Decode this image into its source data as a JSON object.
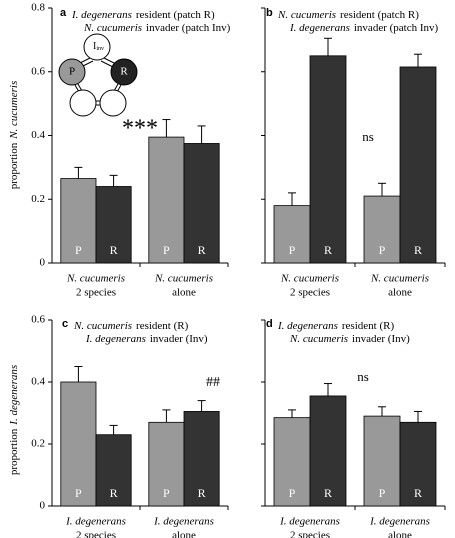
{
  "chart_data": [
    {
      "type": "bar",
      "letter": "a",
      "legend_lines": [
        [
          "I. degenerans",
          "resident (patch R)"
        ],
        [
          "N. cucumeris",
          "invader (patch Inv)"
        ]
      ],
      "y_label": [
        "proportion",
        "N. cucumeris"
      ],
      "categories": [
        [
          "N. cucumeris",
          "2 species"
        ],
        [
          "N. cucumeris",
          "alone"
        ]
      ],
      "series": [
        {
          "name": "P",
          "color": "#999999",
          "values": [
            0.265,
            0.395
          ],
          "errors": [
            0.035,
            0.055
          ]
        },
        {
          "name": "R",
          "color": "#333333",
          "values": [
            0.24,
            0.375
          ],
          "errors": [
            0.035,
            0.055
          ]
        }
      ],
      "ylim": [
        0,
        0.8
      ],
      "yticks": [
        0,
        0.2,
        0.4,
        0.6,
        0.8
      ],
      "ytick_labels": true,
      "annotation": "***",
      "diagram": {
        "labels": [
          "I",
          "inv",
          "P",
          "R"
        ]
      }
    },
    {
      "type": "bar",
      "letter": "b",
      "legend_lines": [
        [
          "N. cucumeris",
          "resident (patch R)"
        ],
        [
          "I. degenerans",
          "invader (patch Inv)"
        ]
      ],
      "categories": [
        [
          "N. cucumeris",
          "2 species"
        ],
        [
          "N. cucumeris",
          "alone"
        ]
      ],
      "series": [
        {
          "name": "P",
          "color": "#999999",
          "values": [
            0.18,
            0.21
          ],
          "errors": [
            0.04,
            0.04
          ]
        },
        {
          "name": "R",
          "color": "#333333",
          "values": [
            0.65,
            0.615
          ],
          "errors": [
            0.055,
            0.04
          ]
        }
      ],
      "ylim": [
        0,
        0.8
      ],
      "yticks": [
        0,
        0.2,
        0.4,
        0.6,
        0.8
      ],
      "ytick_labels": false,
      "annotation": "ns"
    },
    {
      "type": "bar",
      "letter": "c",
      "legend_lines": [
        [
          "N. cucumeris",
          "resident (R)"
        ],
        [
          "I. degenerans",
          "invader (Inv)"
        ]
      ],
      "y_label": [
        "proportion",
        "I. degenerans"
      ],
      "categories": [
        [
          "I. degenerans",
          "2 species"
        ],
        [
          "I. degenerans",
          "alone"
        ]
      ],
      "series": [
        {
          "name": "P",
          "color": "#999999",
          "values": [
            0.4,
            0.27
          ],
          "errors": [
            0.05,
            0.04
          ]
        },
        {
          "name": "R",
          "color": "#333333",
          "values": [
            0.23,
            0.305
          ],
          "errors": [
            0.03,
            0.035
          ]
        }
      ],
      "ylim": [
        0,
        0.6
      ],
      "yticks": [
        0,
        0.2,
        0.4,
        0.6
      ],
      "ytick_labels": true,
      "annotation": "##"
    },
    {
      "type": "bar",
      "letter": "d",
      "legend_lines": [
        [
          "I. degenerans",
          "resident (R)"
        ],
        [
          "N. cucumeris",
          "invader (Inv)"
        ]
      ],
      "categories": [
        [
          "I. degenerans",
          "2 species"
        ],
        [
          "I. degenerans",
          "alone"
        ]
      ],
      "series": [
        {
          "name": "P",
          "color": "#999999",
          "values": [
            0.285,
            0.29
          ],
          "errors": [
            0.025,
            0.03
          ]
        },
        {
          "name": "R",
          "color": "#333333",
          "values": [
            0.355,
            0.27
          ],
          "errors": [
            0.04,
            0.035
          ]
        }
      ],
      "ylim": [
        0,
        0.6
      ],
      "yticks": [
        0,
        0.2,
        0.4,
        0.6
      ],
      "ytick_labels": false,
      "annotation": "ns"
    }
  ]
}
